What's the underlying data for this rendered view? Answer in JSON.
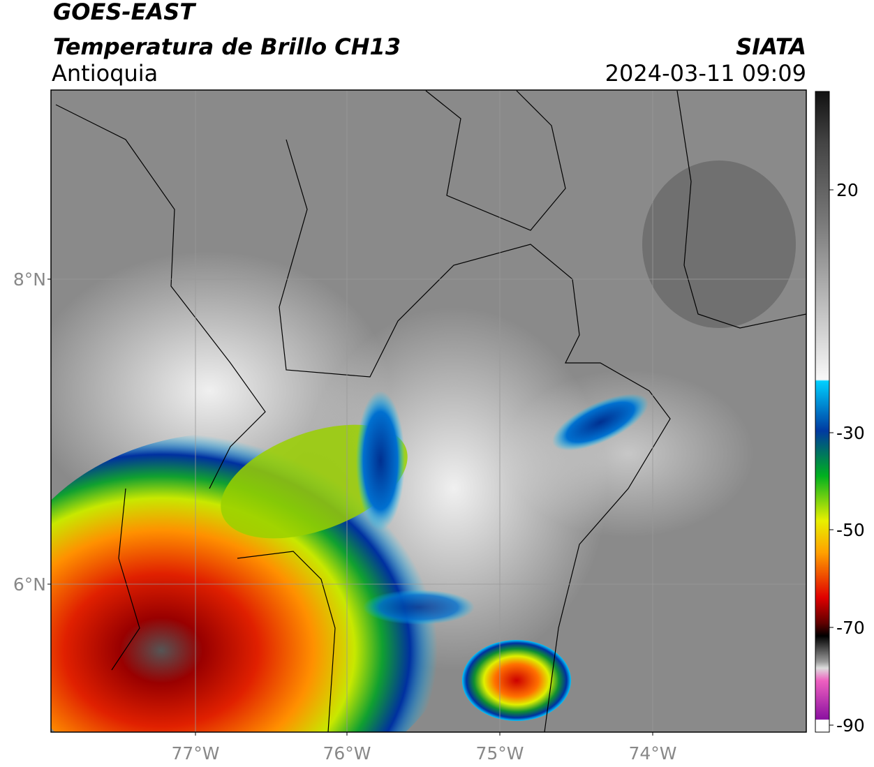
{
  "header": {
    "satellite": "GOES-EAST",
    "product": "Temperatura de Brillo CH13",
    "region": "Antioquia",
    "source": "SIATA",
    "datetime": "2024-03-11 09:09"
  },
  "map": {
    "lat_ticks": [
      "8°N",
      "6°N"
    ],
    "lon_ticks": [
      "77°W",
      "76°W",
      "75°W",
      "74°W"
    ]
  },
  "colorbar": {
    "ticks": [
      "20",
      "-30",
      "-50",
      "-70",
      "-90"
    ]
  }
}
